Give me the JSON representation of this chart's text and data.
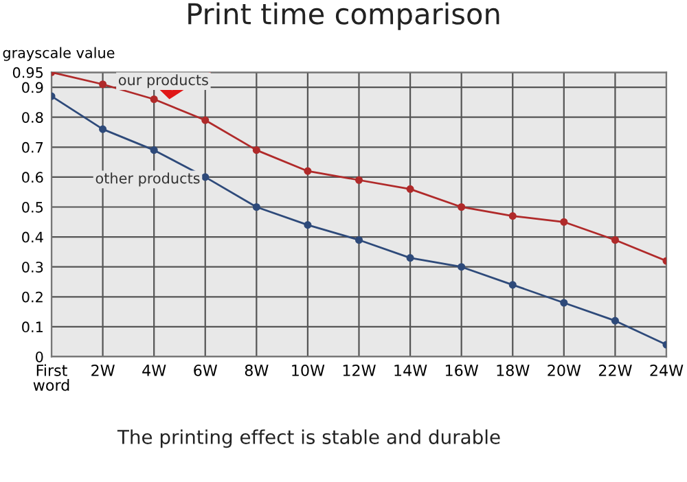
{
  "chart_data": {
    "type": "line",
    "title": "Print time comparison",
    "ylabel": "grayscale value",
    "categories": [
      "First\nword",
      "2W",
      "4W",
      "6W",
      "8W",
      "10W",
      "12W",
      "14W",
      "16W",
      "18W",
      "20W",
      "22W",
      "24W"
    ],
    "series": [
      {
        "name": "our products",
        "color": "#b02a2a",
        "values": [
          0.95,
          0.91,
          0.86,
          0.79,
          0.69,
          0.62,
          0.59,
          0.56,
          0.5,
          0.47,
          0.45,
          0.39,
          0.32
        ]
      },
      {
        "name": "other products",
        "color": "#2e4a7a",
        "values": [
          0.87,
          0.76,
          0.69,
          0.6,
          0.5,
          0.44,
          0.39,
          0.33,
          0.3,
          0.24,
          0.18,
          0.12,
          0.04
        ]
      }
    ],
    "ylim": [
      0,
      0.95
    ],
    "yticks": [
      0,
      0.1,
      0.2,
      0.3,
      0.4,
      0.5,
      0.6,
      0.7,
      0.8,
      0.9,
      0.95
    ],
    "grid": true,
    "marker": "circle",
    "line_style": "solid",
    "annotations": [
      "The printing effect is stable and durable"
    ]
  }
}
